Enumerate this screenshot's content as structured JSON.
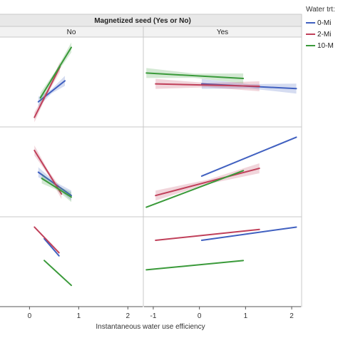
{
  "chart_data": {
    "type": "line",
    "title": "Magnetized seed (Yes or No)",
    "column_labels": [
      "No",
      "Yes"
    ],
    "xlabel": "Instantaneous water use efficiency",
    "x_ticks": {
      "No": [
        0,
        1,
        2
      ],
      "Yes": [
        -1,
        0,
        1,
        2
      ]
    },
    "xlim": {
      "No": [
        -0.6,
        2.3
      ],
      "Yes": [
        -1.2,
        2.2
      ]
    },
    "legend": {
      "title": "Water trt:",
      "placement": "right",
      "entries": [
        "0-Mi",
        "2-Mi",
        "10-M"
      ]
    },
    "colors": {
      "0": "#4060c0",
      "2": "#c0405a",
      "10": "#3a9a3a"
    },
    "grid": false,
    "panels": [
      {
        "row": 0,
        "column": "No",
        "series": [
          {
            "group": "0",
            "x": [
              0.18,
              0.72
            ],
            "y": [
              0.25,
              0.52
            ],
            "band": true
          },
          {
            "group": "2",
            "x": [
              0.1,
              0.62
            ],
            "y": [
              0.05,
              0.7
            ],
            "band": true
          },
          {
            "group": "10",
            "x": [
              0.22,
              0.85
            ],
            "y": [
              0.3,
              0.95
            ],
            "band": true
          }
        ]
      },
      {
        "row": 0,
        "column": "Yes",
        "series": [
          {
            "group": "0",
            "x": [
              0.05,
              2.1
            ],
            "y": [
              0.48,
              0.42
            ],
            "band": true
          },
          {
            "group": "2",
            "x": [
              -0.95,
              1.3
            ],
            "y": [
              0.48,
              0.45
            ],
            "band": true
          },
          {
            "group": "10",
            "x": [
              -1.15,
              0.95
            ],
            "y": [
              0.62,
              0.55
            ],
            "band": true
          }
        ]
      },
      {
        "row": 1,
        "column": "No",
        "series": [
          {
            "group": "0",
            "x": [
              0.18,
              0.85
            ],
            "y": [
              0.5,
              0.2
            ],
            "band": true
          },
          {
            "group": "2",
            "x": [
              0.1,
              0.65
            ],
            "y": [
              0.78,
              0.22
            ],
            "band": true
          },
          {
            "group": "10",
            "x": [
              0.25,
              0.85
            ],
            "y": [
              0.42,
              0.18
            ],
            "band": true
          }
        ]
      },
      {
        "row": 1,
        "column": "Yes",
        "series": [
          {
            "group": "0",
            "x": [
              0.05,
              2.1
            ],
            "y": [
              0.45,
              0.95
            ],
            "band": false
          },
          {
            "group": "2",
            "x": [
              -0.95,
              1.3
            ],
            "y": [
              0.2,
              0.55
            ],
            "band": true
          },
          {
            "group": "10",
            "x": [
              -1.15,
              0.95
            ],
            "y": [
              0.05,
              0.52
            ],
            "band": false
          }
        ]
      },
      {
        "row": 2,
        "column": "No",
        "series": [
          {
            "group": "0",
            "x": [
              0.3,
              0.6
            ],
            "y": [
              0.8,
              0.58
            ],
            "band": false
          },
          {
            "group": "2",
            "x": [
              0.1,
              0.6
            ],
            "y": [
              0.95,
              0.62
            ],
            "band": false
          },
          {
            "group": "10",
            "x": [
              0.3,
              0.85
            ],
            "y": [
              0.52,
              0.2
            ],
            "band": false
          }
        ]
      },
      {
        "row": 2,
        "column": "Yes",
        "series": [
          {
            "group": "0",
            "x": [
              0.05,
              2.1
            ],
            "y": [
              0.78,
              0.95
            ],
            "band": false
          },
          {
            "group": "2",
            "x": [
              -0.95,
              1.3
            ],
            "y": [
              0.78,
              0.92
            ],
            "band": false
          },
          {
            "group": "10",
            "x": [
              -1.15,
              0.95
            ],
            "y": [
              0.4,
              0.52
            ],
            "band": false
          }
        ]
      }
    ]
  }
}
